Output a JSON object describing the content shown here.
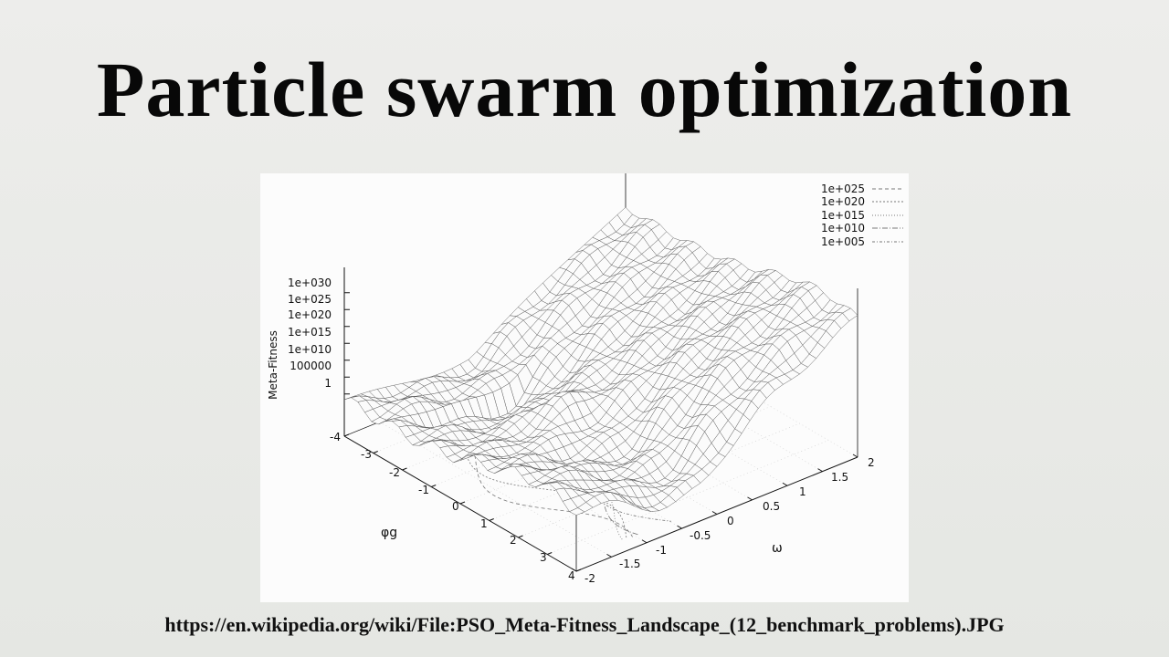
{
  "slide": {
    "title": "Particle swarm optimization",
    "source": "https://en.wikipedia.org/wiki/File:PSO_Meta-Fitness_Landscape_(12_benchmark_problems).JPG"
  },
  "chart_data": {
    "type": "surface",
    "style": "3D wireframe surface with contour projection on the base plane",
    "zlabel": "Meta-Fitness",
    "z_scale": "log",
    "z_ticks": [
      "1",
      "100000",
      "1e+010",
      "1e+015",
      "1e+020",
      "1e+025",
      "1e+030"
    ],
    "phi_axis": {
      "label": "φg",
      "ticks": [
        "-4",
        "-3",
        "-2",
        "-1",
        "0",
        "1",
        "2",
        "3",
        "4"
      ],
      "range": [
        -4,
        4
      ]
    },
    "omega_axis": {
      "label": "ω",
      "ticks": [
        "-2",
        "-1.5",
        "-1",
        "-0.5",
        "0",
        "0.5",
        "1",
        "1.5",
        "2"
      ],
      "range": [
        -2,
        2
      ]
    },
    "legend": {
      "placement": "top-right",
      "entries": [
        "1e+025",
        "1e+020",
        "1e+015",
        "1e+010",
        "1e+005"
      ]
    },
    "colors": {
      "mesh": "#555555",
      "contour": "#777777",
      "axis": "#111111"
    }
  }
}
